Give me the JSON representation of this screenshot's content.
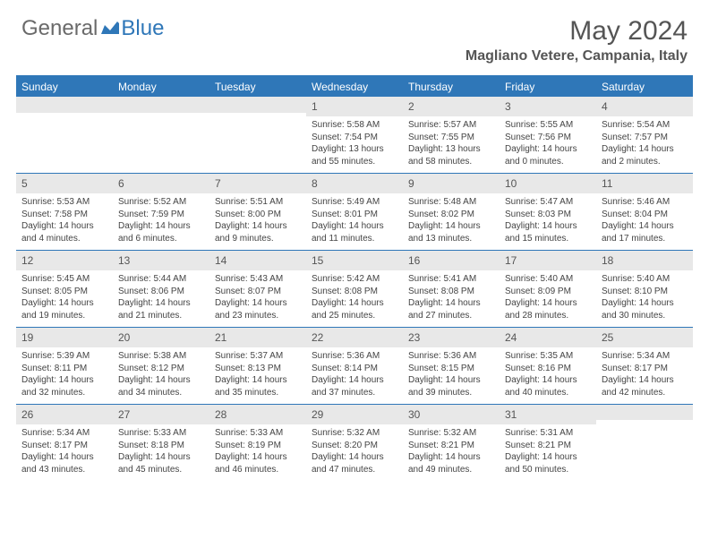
{
  "logo": {
    "gray": "General",
    "blue": "Blue"
  },
  "title": "May 2024",
  "location": "Magliano Vetere, Campania, Italy",
  "header_bg": "#2f77b8",
  "text_color": "#555555",
  "day_headers": [
    "Sunday",
    "Monday",
    "Tuesday",
    "Wednesday",
    "Thursday",
    "Friday",
    "Saturday"
  ],
  "weeks": [
    [
      null,
      null,
      null,
      {
        "n": "1",
        "sr": "5:58 AM",
        "ss": "7:54 PM",
        "dl": "13 hours and 55 minutes."
      },
      {
        "n": "2",
        "sr": "5:57 AM",
        "ss": "7:55 PM",
        "dl": "13 hours and 58 minutes."
      },
      {
        "n": "3",
        "sr": "5:55 AM",
        "ss": "7:56 PM",
        "dl": "14 hours and 0 minutes."
      },
      {
        "n": "4",
        "sr": "5:54 AM",
        "ss": "7:57 PM",
        "dl": "14 hours and 2 minutes."
      }
    ],
    [
      {
        "n": "5",
        "sr": "5:53 AM",
        "ss": "7:58 PM",
        "dl": "14 hours and 4 minutes."
      },
      {
        "n": "6",
        "sr": "5:52 AM",
        "ss": "7:59 PM",
        "dl": "14 hours and 6 minutes."
      },
      {
        "n": "7",
        "sr": "5:51 AM",
        "ss": "8:00 PM",
        "dl": "14 hours and 9 minutes."
      },
      {
        "n": "8",
        "sr": "5:49 AM",
        "ss": "8:01 PM",
        "dl": "14 hours and 11 minutes."
      },
      {
        "n": "9",
        "sr": "5:48 AM",
        "ss": "8:02 PM",
        "dl": "14 hours and 13 minutes."
      },
      {
        "n": "10",
        "sr": "5:47 AM",
        "ss": "8:03 PM",
        "dl": "14 hours and 15 minutes."
      },
      {
        "n": "11",
        "sr": "5:46 AM",
        "ss": "8:04 PM",
        "dl": "14 hours and 17 minutes."
      }
    ],
    [
      {
        "n": "12",
        "sr": "5:45 AM",
        "ss": "8:05 PM",
        "dl": "14 hours and 19 minutes."
      },
      {
        "n": "13",
        "sr": "5:44 AM",
        "ss": "8:06 PM",
        "dl": "14 hours and 21 minutes."
      },
      {
        "n": "14",
        "sr": "5:43 AM",
        "ss": "8:07 PM",
        "dl": "14 hours and 23 minutes."
      },
      {
        "n": "15",
        "sr": "5:42 AM",
        "ss": "8:08 PM",
        "dl": "14 hours and 25 minutes."
      },
      {
        "n": "16",
        "sr": "5:41 AM",
        "ss": "8:08 PM",
        "dl": "14 hours and 27 minutes."
      },
      {
        "n": "17",
        "sr": "5:40 AM",
        "ss": "8:09 PM",
        "dl": "14 hours and 28 minutes."
      },
      {
        "n": "18",
        "sr": "5:40 AM",
        "ss": "8:10 PM",
        "dl": "14 hours and 30 minutes."
      }
    ],
    [
      {
        "n": "19",
        "sr": "5:39 AM",
        "ss": "8:11 PM",
        "dl": "14 hours and 32 minutes."
      },
      {
        "n": "20",
        "sr": "5:38 AM",
        "ss": "8:12 PM",
        "dl": "14 hours and 34 minutes."
      },
      {
        "n": "21",
        "sr": "5:37 AM",
        "ss": "8:13 PM",
        "dl": "14 hours and 35 minutes."
      },
      {
        "n": "22",
        "sr": "5:36 AM",
        "ss": "8:14 PM",
        "dl": "14 hours and 37 minutes."
      },
      {
        "n": "23",
        "sr": "5:36 AM",
        "ss": "8:15 PM",
        "dl": "14 hours and 39 minutes."
      },
      {
        "n": "24",
        "sr": "5:35 AM",
        "ss": "8:16 PM",
        "dl": "14 hours and 40 minutes."
      },
      {
        "n": "25",
        "sr": "5:34 AM",
        "ss": "8:17 PM",
        "dl": "14 hours and 42 minutes."
      }
    ],
    [
      {
        "n": "26",
        "sr": "5:34 AM",
        "ss": "8:17 PM",
        "dl": "14 hours and 43 minutes."
      },
      {
        "n": "27",
        "sr": "5:33 AM",
        "ss": "8:18 PM",
        "dl": "14 hours and 45 minutes."
      },
      {
        "n": "28",
        "sr": "5:33 AM",
        "ss": "8:19 PM",
        "dl": "14 hours and 46 minutes."
      },
      {
        "n": "29",
        "sr": "5:32 AM",
        "ss": "8:20 PM",
        "dl": "14 hours and 47 minutes."
      },
      {
        "n": "30",
        "sr": "5:32 AM",
        "ss": "8:21 PM",
        "dl": "14 hours and 49 minutes."
      },
      {
        "n": "31",
        "sr": "5:31 AM",
        "ss": "8:21 PM",
        "dl": "14 hours and 50 minutes."
      },
      null
    ]
  ],
  "labels": {
    "sunrise": "Sunrise:",
    "sunset": "Sunset:",
    "daylight": "Daylight:"
  }
}
